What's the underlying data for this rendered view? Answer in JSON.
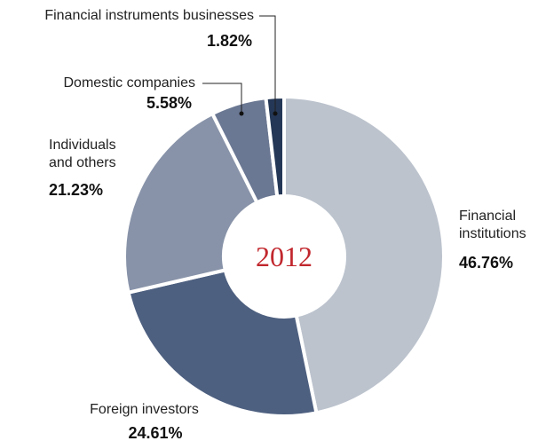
{
  "chart_data": {
    "type": "donut",
    "center_label": "2012",
    "categories": [
      "Financial institutions",
      "Foreign investors",
      "Individuals and others",
      "Domestic companies",
      "Financial instruments businesses"
    ],
    "values": [
      46.76,
      24.61,
      21.23,
      5.58,
      1.82
    ],
    "value_labels": [
      "46.76%",
      "24.61%",
      "21.23%",
      "5.58%",
      "1.82%"
    ],
    "colors": [
      "#bcc3cd",
      "#4e6080",
      "#8893a9",
      "#6b7893",
      "#243756"
    ]
  }
}
